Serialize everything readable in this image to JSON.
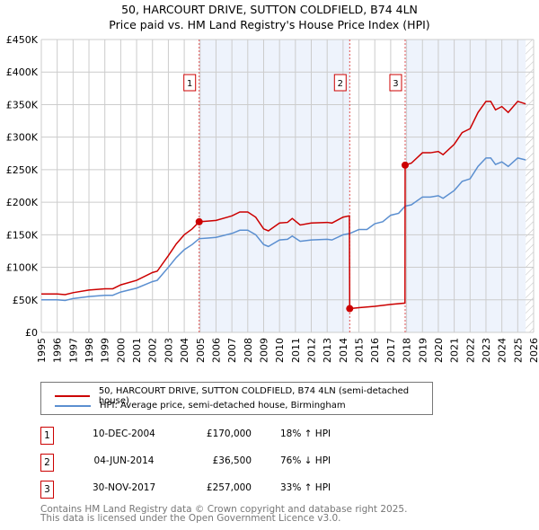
{
  "chart_data": {
    "type": "line",
    "title": "50, HARCOURT DRIVE, SUTTON COLDFIELD, B74 4LN",
    "subtitle": "Price paid vs. HM Land Registry's House Price Index (HPI)",
    "xlim": [
      1995,
      2026
    ],
    "ylim": [
      0,
      450000
    ],
    "y_ticks": [
      0,
      50000,
      100000,
      150000,
      200000,
      250000,
      300000,
      350000,
      400000,
      450000
    ],
    "y_tick_labels": [
      "£0",
      "£50K",
      "£100K",
      "£150K",
      "£200K",
      "£250K",
      "£300K",
      "£350K",
      "£400K",
      "£450K"
    ],
    "x_ticks": [
      "1995",
      "1996",
      "1997",
      "1998",
      "1999",
      "2000",
      "2001",
      "2002",
      "2003",
      "2004",
      "2005",
      "2006",
      "2007",
      "2008",
      "2009",
      "2010",
      "2011",
      "2012",
      "2013",
      "2014",
      "2015",
      "2016",
      "2017",
      "2018",
      "2019",
      "2020",
      "2021",
      "2022",
      "2023",
      "2024",
      "2025",
      "2026"
    ],
    "grid": true,
    "series": [
      {
        "name": "50, HARCOURT DRIVE, SUTTON COLDFIELD, B74 4LN (semi-detached house)",
        "color": "#cc0000",
        "x": [
          1995,
          1996,
          1996.5,
          1997,
          1998,
          1999,
          1999.5,
          2000,
          2001,
          2002,
          2002.3,
          2003,
          2003.5,
          2004,
          2004.5,
          2004.94,
          2005.5,
          2006,
          2007,
          2007.5,
          2008,
          2008.5,
          2009,
          2009.3,
          2010,
          2010.5,
          2010.8,
          2011.3,
          2012,
          2013,
          2013.3,
          2014,
          2014.4,
          2014.42,
          2015,
          2016,
          2017,
          2017.9,
          2017.91,
          2018.3,
          2019,
          2019.5,
          2020,
          2020.3,
          2021,
          2021.5,
          2022,
          2022.5,
          2023,
          2023.3,
          2023.6,
          2024,
          2024.4,
          2025,
          2025.5
        ],
        "y": [
          59000,
          59000,
          58000,
          61000,
          65000,
          67000,
          67000,
          73000,
          80000,
          92000,
          94000,
          118000,
          136000,
          150000,
          159000,
          170000,
          171000,
          172000,
          179000,
          185000,
          185000,
          177000,
          159000,
          156000,
          168000,
          169000,
          175000,
          165000,
          168000,
          169000,
          168000,
          177000,
          179000,
          36500,
          38000,
          40000,
          43000,
          45000,
          257000,
          260000,
          276000,
          276000,
          278000,
          273000,
          289000,
          307000,
          313000,
          338000,
          355000,
          355000,
          342000,
          347000,
          338000,
          355000,
          351000
        ]
      },
      {
        "name": "HPI: Average price, semi-detached house, Birmingham",
        "color": "#5b8fd0",
        "x": [
          1995,
          1996,
          1996.5,
          1997,
          1998,
          1999,
          1999.5,
          2000,
          2001,
          2002,
          2002.3,
          2003,
          2003.5,
          2004,
          2004.5,
          2004.94,
          2005.5,
          2006,
          2007,
          2007.5,
          2008,
          2008.5,
          2009,
          2009.3,
          2010,
          2010.5,
          2010.8,
          2011.3,
          2012,
          2013,
          2013.3,
          2014,
          2014.42,
          2015,
          2015.5,
          2016,
          2016.5,
          2017,
          2017.5,
          2017.91,
          2018.3,
          2019,
          2019.5,
          2020,
          2020.3,
          2021,
          2021.5,
          2022,
          2022.5,
          2023,
          2023.3,
          2023.6,
          2024,
          2024.4,
          2025,
          2025.5
        ],
        "y": [
          50000,
          50000,
          49000,
          52000,
          55000,
          57000,
          57000,
          62000,
          68000,
          78000,
          80000,
          100000,
          115000,
          127000,
          135000,
          144000,
          145000,
          146000,
          152000,
          157000,
          157000,
          150000,
          135000,
          132000,
          142000,
          143000,
          148000,
          140000,
          142000,
          143000,
          142000,
          150000,
          152000,
          158000,
          158000,
          167000,
          170000,
          180000,
          183000,
          194000,
          196000,
          208000,
          208000,
          210000,
          206000,
          218000,
          232000,
          236000,
          255000,
          268000,
          268000,
          258000,
          262000,
          255000,
          268000,
          265000
        ]
      }
    ],
    "sales": [
      {
        "label": "1",
        "x": 2004.94,
        "y": 170000
      },
      {
        "label": "2",
        "x": 2014.42,
        "y": 36500
      },
      {
        "label": "3",
        "x": 2017.91,
        "y": 257000
      }
    ],
    "legend_position": "below"
  },
  "transactions": [
    {
      "n": "1",
      "date": "10-DEC-2004",
      "price": "£170,000",
      "hpi": "18% ↑ HPI"
    },
    {
      "n": "2",
      "date": "04-JUN-2014",
      "price": "£36,500",
      "hpi": "76% ↓ HPI"
    },
    {
      "n": "3",
      "date": "30-NOV-2017",
      "price": "£257,000",
      "hpi": "33% ↑ HPI"
    }
  ],
  "footer": {
    "line1": "Contains HM Land Registry data © Crown copyright and database right 2025.",
    "line2": "This data is licensed under the Open Government Licence v3.0."
  }
}
